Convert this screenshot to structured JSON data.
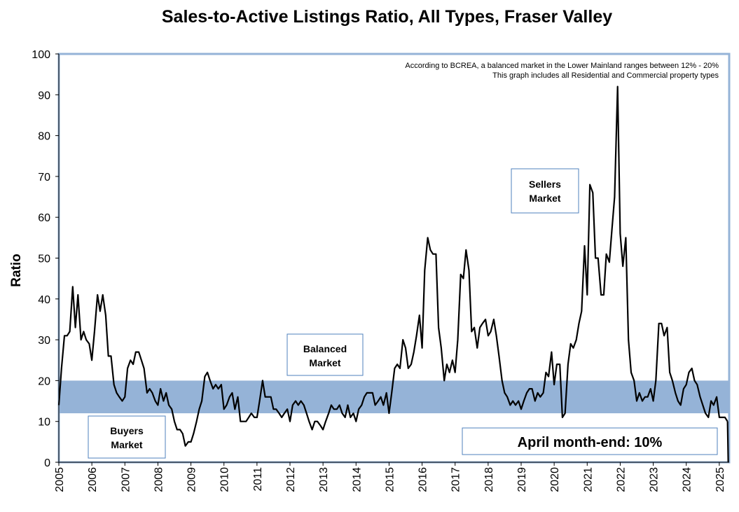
{
  "colors": {
    "line": "#000000",
    "balanced_band": "#95b3d7",
    "plot_border": "#95b3d7",
    "box_border": "#4f81bd"
  },
  "chart_data": {
    "type": "line",
    "title": "Sales-to-Active Listings Ratio, All Types, Fraser Valley",
    "ylabel": "Ratio",
    "xlabel": "",
    "ylim": [
      0,
      100
    ],
    "yticks": [
      0,
      10,
      20,
      30,
      40,
      50,
      60,
      70,
      80,
      90,
      100
    ],
    "xlim": [
      2005.0,
      2025.3
    ],
    "xticks": [
      "2005",
      "2006",
      "2007",
      "2008",
      "2009",
      "2010",
      "2011",
      "2012",
      "2013",
      "2014",
      "2015",
      "2016",
      "2017",
      "2018",
      "2019",
      "2020",
      "2021",
      "2022",
      "2023",
      "2024",
      "2025"
    ],
    "balanced_band": [
      12,
      20
    ],
    "grid": false,
    "notes": [
      "According to BCREA, a balanced market in the Lower Mainland ranges between 12% - 20%",
      "This graph includes all Residential and Commercial property types"
    ],
    "annotations": {
      "sellers": [
        "Sellers",
        "Market"
      ],
      "balanced": [
        "Balanced",
        "Market"
      ],
      "buyers": [
        "Buyers",
        "Market"
      ],
      "april": "April month-end: 10%"
    },
    "series": [
      {
        "x": [
          2005.0,
          2005.08,
          2005.17,
          2005.25,
          2005.33,
          2005.42,
          2005.5,
          2005.58,
          2005.67,
          2005.75,
          2005.83,
          2005.92,
          2006.0,
          2006.08,
          2006.17,
          2006.25,
          2006.33,
          2006.42,
          2006.5,
          2006.58,
          2006.67,
          2006.75,
          2006.83,
          2006.92,
          2007.0,
          2007.08,
          2007.17,
          2007.25,
          2007.33,
          2007.42,
          2007.5,
          2007.58,
          2007.67,
          2007.75,
          2007.83,
          2007.92,
          2008.0,
          2008.08,
          2008.17,
          2008.25,
          2008.33,
          2008.42,
          2008.5,
          2008.58,
          2008.67,
          2008.75,
          2008.83,
          2008.92,
          2009.0,
          2009.08,
          2009.17,
          2009.25,
          2009.33,
          2009.42,
          2009.5,
          2009.58,
          2009.67,
          2009.75,
          2009.83,
          2009.92,
          2010.0,
          2010.08,
          2010.17,
          2010.25,
          2010.33,
          2010.42,
          2010.5,
          2010.58,
          2010.67,
          2010.75,
          2010.83,
          2010.92,
          2011.0,
          2011.08,
          2011.17,
          2011.25,
          2011.33,
          2011.42,
          2011.5,
          2011.58,
          2011.67,
          2011.75,
          2011.83,
          2011.92,
          2012.0,
          2012.08,
          2012.17,
          2012.25,
          2012.33,
          2012.42,
          2012.5,
          2012.58,
          2012.67,
          2012.75,
          2012.83,
          2012.92,
          2013.0,
          2013.08,
          2013.17,
          2013.25,
          2013.33,
          2013.42,
          2013.5,
          2013.58,
          2013.67,
          2013.75,
          2013.83,
          2013.92,
          2014.0,
          2014.08,
          2014.17,
          2014.25,
          2014.33,
          2014.42,
          2014.5,
          2014.58,
          2014.67,
          2014.75,
          2014.83,
          2014.92,
          2015.0,
          2015.08,
          2015.17,
          2015.25,
          2015.33,
          2015.42,
          2015.5,
          2015.58,
          2015.67,
          2015.75,
          2015.83,
          2015.92,
          2016.0,
          2016.08,
          2016.17,
          2016.25,
          2016.33,
          2016.42,
          2016.5,
          2016.58,
          2016.67,
          2016.75,
          2016.83,
          2016.92,
          2017.0,
          2017.08,
          2017.17,
          2017.25,
          2017.33,
          2017.42,
          2017.5,
          2017.58,
          2017.67,
          2017.75,
          2017.83,
          2017.92,
          2018.0,
          2018.08,
          2018.17,
          2018.25,
          2018.33,
          2018.42,
          2018.5,
          2018.58,
          2018.67,
          2018.75,
          2018.83,
          2018.92,
          2019.0,
          2019.08,
          2019.17,
          2019.25,
          2019.33,
          2019.42,
          2019.5,
          2019.58,
          2019.67,
          2019.75,
          2019.83,
          2019.92,
          2020.0,
          2020.08,
          2020.17,
          2020.25,
          2020.33,
          2020.42,
          2020.5,
          2020.58,
          2020.67,
          2020.75,
          2020.83,
          2020.92,
          2021.0,
          2021.08,
          2021.17,
          2021.25,
          2021.33,
          2021.42,
          2021.5,
          2021.58,
          2021.67,
          2021.75,
          2021.83,
          2021.92,
          2022.0,
          2022.08,
          2022.17,
          2022.25,
          2022.33,
          2022.42,
          2022.5,
          2022.58,
          2022.67,
          2022.75,
          2022.83,
          2022.92,
          2023.0,
          2023.08,
          2023.17,
          2023.25,
          2023.33,
          2023.42,
          2023.5,
          2023.58,
          2023.67,
          2023.75,
          2023.83,
          2023.92,
          2024.0,
          2024.08,
          2024.17,
          2024.25,
          2024.33,
          2024.42,
          2024.5,
          2024.58,
          2024.67,
          2024.75,
          2024.83,
          2024.92,
          2025.0,
          2025.08,
          2025.17,
          2025.25
        ],
        "values": [
          14,
          23,
          31,
          31,
          32,
          43,
          33,
          41,
          30,
          32,
          30,
          29,
          25,
          32,
          41,
          37,
          41,
          36,
          26,
          26,
          19,
          17,
          16,
          15,
          16,
          23,
          25,
          24,
          27,
          27,
          25,
          23,
          17,
          18,
          17,
          15,
          14,
          18,
          15,
          17,
          14,
          13,
          10,
          8,
          8,
          7,
          4,
          5,
          5,
          7,
          10,
          13,
          15,
          21,
          22,
          20,
          18,
          19,
          18,
          19,
          13,
          14,
          16,
          17,
          13,
          16,
          10,
          10,
          10,
          11,
          12,
          11,
          11,
          15,
          20,
          16,
          16,
          16,
          13,
          13,
          12,
          11,
          12,
          13,
          10,
          14,
          15,
          14,
          15,
          14,
          12,
          10,
          8,
          10,
          10,
          9,
          8,
          10,
          12,
          14,
          13,
          13,
          14,
          12,
          11,
          14,
          11,
          12,
          10,
          13,
          14,
          16,
          17,
          17,
          17,
          14,
          15,
          16,
          14,
          17,
          12,
          17,
          23,
          24,
          23,
          30,
          28,
          23,
          24,
          27,
          31,
          36,
          28,
          47,
          55,
          52,
          51,
          51,
          33,
          28,
          20,
          24,
          22,
          25,
          22,
          30,
          46,
          45,
          52,
          47,
          32,
          33,
          28,
          33,
          34,
          35,
          31,
          32,
          35,
          31,
          26,
          20,
          17,
          16,
          14,
          15,
          14,
          15,
          13,
          15,
          17,
          18,
          18,
          15,
          17,
          16,
          17,
          22,
          21,
          27,
          19,
          24,
          24,
          11,
          12,
          24,
          29,
          28,
          30,
          34,
          37,
          53,
          41,
          68,
          66,
          50,
          50,
          41,
          41,
          51,
          49,
          57,
          65,
          92,
          56,
          48,
          55,
          30,
          22,
          20,
          15,
          17,
          15,
          16,
          16,
          18,
          15,
          20,
          34,
          34,
          31,
          33,
          22,
          20,
          17,
          15,
          14,
          18,
          19,
          22,
          23,
          20,
          19,
          16,
          14,
          12,
          11,
          15,
          14,
          16,
          11,
          11,
          11,
          10
        ]
      }
    ]
  }
}
